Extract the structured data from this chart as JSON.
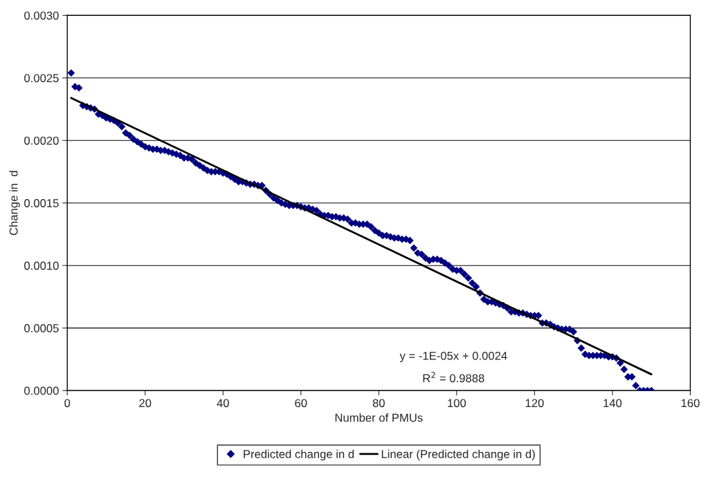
{
  "chart_data": {
    "type": "scatter",
    "xlabel": "Number of PMUs",
    "ylabel": "Change in  d",
    "xlim": [
      0,
      160
    ],
    "xticks": [
      0,
      20,
      40,
      60,
      80,
      100,
      120,
      140,
      160
    ],
    "ylim": [
      0,
      0.003
    ],
    "yticks": [
      {
        "value": 0,
        "label": "0.0000"
      },
      {
        "value": 0.0005,
        "label": "0.0005"
      },
      {
        "value": 0.001,
        "label": "0.0010"
      },
      {
        "value": 0.0015,
        "label": "0.0015"
      },
      {
        "value": 0.002,
        "label": "0.0020"
      },
      {
        "value": 0.0025,
        "label": "0.0025"
      },
      {
        "value": 0.003,
        "label": "0.0030"
      }
    ],
    "grid": "y",
    "legend": "bottom",
    "marker": "diamond",
    "annotations": [
      "y = -1E-05x + 0.0024",
      "R$^{2}$ = 0.9888"
    ],
    "series": [
      {
        "name": "Predicted change in d",
        "color": "#000080",
        "x": [
          1,
          2,
          3,
          4,
          5,
          6,
          7,
          8,
          9,
          10,
          11,
          12,
          13,
          14,
          15,
          16,
          17,
          18,
          19,
          20,
          21,
          22,
          23,
          24,
          25,
          26,
          27,
          28,
          29,
          30,
          31,
          32,
          33,
          34,
          35,
          36,
          37,
          38,
          39,
          40,
          41,
          42,
          43,
          44,
          45,
          46,
          47,
          48,
          49,
          50,
          51,
          52,
          53,
          54,
          55,
          56,
          57,
          58,
          59,
          60,
          61,
          62,
          63,
          64,
          65,
          66,
          67,
          68,
          69,
          70,
          71,
          72,
          73,
          74,
          75,
          76,
          77,
          78,
          79,
          80,
          81,
          82,
          83,
          84,
          85,
          86,
          87,
          88,
          89,
          90,
          91,
          92,
          93,
          94,
          95,
          96,
          97,
          98,
          99,
          100,
          101,
          102,
          103,
          104,
          105,
          106,
          107,
          108,
          109,
          110,
          111,
          112,
          113,
          114,
          115,
          116,
          117,
          118,
          119,
          120,
          121,
          122,
          123,
          124,
          125,
          126,
          127,
          128,
          129,
          130,
          131,
          132,
          133,
          134,
          135,
          136,
          137,
          138,
          139,
          140,
          141,
          142,
          143,
          144,
          145,
          146,
          147,
          148,
          149,
          150
        ],
        "values": [
          0.00254,
          0.00243,
          0.00242,
          0.00228,
          0.00227,
          0.00226,
          0.00225,
          0.00221,
          0.0022,
          0.00218,
          0.00217,
          0.00216,
          0.00214,
          0.00211,
          0.00206,
          0.00204,
          0.00201,
          0.00199,
          0.00197,
          0.00195,
          0.00194,
          0.00193,
          0.00193,
          0.00192,
          0.00192,
          0.00191,
          0.0019,
          0.00189,
          0.00188,
          0.00186,
          0.00186,
          0.00185,
          0.00182,
          0.0018,
          0.00178,
          0.00176,
          0.00175,
          0.00175,
          0.00175,
          0.00174,
          0.00173,
          0.00171,
          0.00169,
          0.00167,
          0.00167,
          0.00166,
          0.00165,
          0.00165,
          0.00164,
          0.00164,
          0.0016,
          0.00157,
          0.00154,
          0.00152,
          0.0015,
          0.00149,
          0.00148,
          0.00148,
          0.00148,
          0.00147,
          0.00146,
          0.00146,
          0.00145,
          0.00144,
          0.00141,
          0.0014,
          0.0014,
          0.00139,
          0.00139,
          0.00138,
          0.00138,
          0.00137,
          0.00134,
          0.00134,
          0.00133,
          0.00133,
          0.00133,
          0.00131,
          0.00128,
          0.00126,
          0.00124,
          0.00124,
          0.00123,
          0.00122,
          0.00122,
          0.00121,
          0.00121,
          0.0012,
          0.00114,
          0.0011,
          0.00109,
          0.00106,
          0.00104,
          0.00105,
          0.00105,
          0.00104,
          0.00102,
          0.001,
          0.00097,
          0.00096,
          0.00096,
          0.00093,
          0.0009,
          0.00086,
          0.00083,
          0.00078,
          0.00073,
          0.00071,
          0.00071,
          0.0007,
          0.00069,
          0.00068,
          0.00066,
          0.00063,
          0.00063,
          0.00062,
          0.00062,
          0.00061,
          0.0006,
          0.0006,
          0.0006,
          0.00054,
          0.00054,
          0.00053,
          0.00051,
          0.0005,
          0.00049,
          0.00049,
          0.00049,
          0.00047,
          0.0004,
          0.00034,
          0.00029,
          0.00028,
          0.00028,
          0.00028,
          0.00028,
          0.00028,
          0.00027,
          0.00027,
          0.00026,
          0.00022,
          0.00017,
          0.00011,
          0.00011,
          4e-05,
          0,
          0,
          0,
          0
        ]
      },
      {
        "name": "Linear (Predicted change in d)",
        "type": "line",
        "color": "#000000",
        "marker": "none",
        "line_style": "solid",
        "x": [
          1,
          150
        ],
        "values": [
          0.00234,
          0.00013
        ]
      }
    ]
  }
}
